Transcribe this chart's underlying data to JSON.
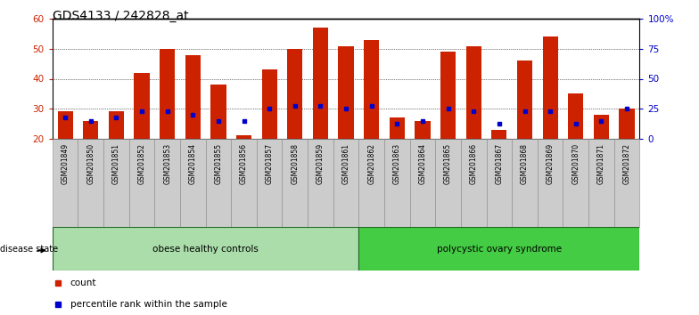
{
  "title": "GDS4133 / 242828_at",
  "samples": [
    "GSM201849",
    "GSM201850",
    "GSM201851",
    "GSM201852",
    "GSM201853",
    "GSM201854",
    "GSM201855",
    "GSM201856",
    "GSM201857",
    "GSM201858",
    "GSM201859",
    "GSM201861",
    "GSM201862",
    "GSM201863",
    "GSM201864",
    "GSM201865",
    "GSM201866",
    "GSM201867",
    "GSM201868",
    "GSM201869",
    "GSM201870",
    "GSM201871",
    "GSM201872"
  ],
  "counts": [
    29,
    26,
    29,
    42,
    50,
    48,
    38,
    21,
    43,
    50,
    57,
    51,
    53,
    27,
    26,
    49,
    51,
    23,
    46,
    54,
    35,
    28,
    30
  ],
  "percentiles": [
    27,
    26,
    27,
    29,
    29,
    28,
    26,
    26,
    30,
    31,
    31,
    30,
    31,
    25,
    26,
    30,
    29,
    25,
    29,
    29,
    25,
    26,
    30
  ],
  "groups": [
    {
      "label": "obese healthy controls",
      "start": 0,
      "end": 12,
      "color": "#AADDAA"
    },
    {
      "label": "polycystic ovary syndrome",
      "start": 12,
      "end": 23,
      "color": "#44CC44"
    }
  ],
  "ymin": 20,
  "ymax": 60,
  "yticks": [
    20,
    30,
    40,
    50,
    60
  ],
  "right_yticks_vals": [
    20,
    30,
    40,
    50,
    60
  ],
  "right_ytick_labels": [
    "0",
    "25",
    "50",
    "75",
    "100%"
  ],
  "bar_color": "#CC2200",
  "percentile_color": "#0000CC",
  "title_fontsize": 10,
  "axis_label_color_left": "#CC2200",
  "axis_label_color_right": "#0000CC",
  "disease_state_label": "disease state",
  "legend_count_label": "count",
  "legend_percentile_label": "percentile rank within the sample",
  "tick_bg_color": "#CCCCCC",
  "tick_border_color": "#888888"
}
